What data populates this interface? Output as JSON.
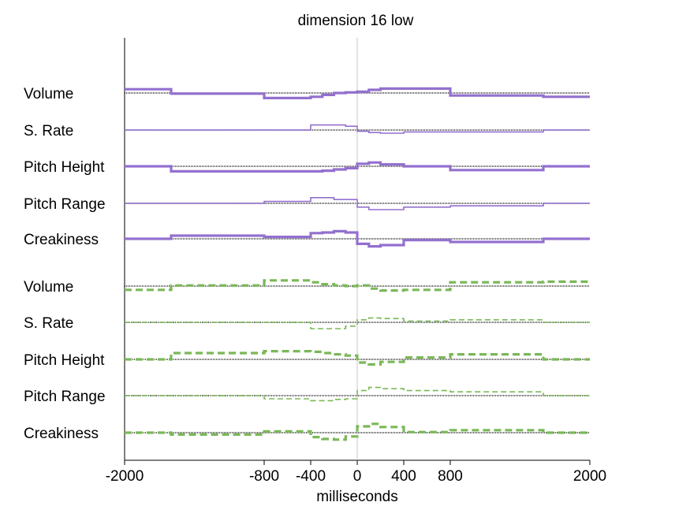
{
  "chart_data": {
    "type": "line",
    "title": "dimension 16 low",
    "xlabel": "milliseconds",
    "xlim": [
      -2000,
      2000
    ],
    "x_ticks": [
      -2000,
      -800,
      -400,
      0,
      400,
      800,
      2000
    ],
    "x_tick_labels": [
      "-2000",
      "-800",
      "-400",
      "0",
      "400",
      "800",
      "2000"
    ],
    "grid": false,
    "legend": "none",
    "row_labels": [
      "Volume",
      "S. Rate",
      "Pitch Height",
      "Pitch Range",
      "Creakiness",
      "Volume",
      "S. Rate",
      "Pitch Height",
      "Pitch Range",
      "Creakiness"
    ],
    "colors": {
      "purple": "#9370cf",
      "green": "#7ab857",
      "baseline": "#222222",
      "zero_line": "#c8c8c8"
    },
    "x_breakpoints": [
      -2000,
      -1600,
      -800,
      -400,
      -300,
      -200,
      -100,
      0,
      100,
      200,
      400,
      800,
      1600,
      2000
    ],
    "series": [
      {
        "group": "purple",
        "style": "solid",
        "weight": "thick",
        "values": [
          0.6,
          -0.1,
          -0.8,
          -0.6,
          -0.3,
          0,
          0.1,
          0.2,
          0.5,
          0.7,
          0.7,
          -0.4,
          -0.6,
          -0.6
        ]
      },
      {
        "group": "purple",
        "style": "solid",
        "weight": "thin",
        "values": [
          0,
          0,
          0,
          0.8,
          0.8,
          0.8,
          0.6,
          -0.2,
          -0.4,
          -0.5,
          -0.3,
          -0.3,
          0,
          0
        ]
      },
      {
        "group": "purple",
        "style": "solid",
        "weight": "thick",
        "values": [
          0,
          -0.8,
          -0.8,
          -0.8,
          -0.7,
          -0.5,
          -0.3,
          0.4,
          0.6,
          0.3,
          0,
          -0.6,
          0,
          0
        ]
      },
      {
        "group": "purple",
        "style": "solid",
        "weight": "thin",
        "values": [
          0,
          0,
          0.3,
          0.9,
          0.9,
          0.6,
          0.6,
          -0.6,
          -1.0,
          -1.0,
          -0.6,
          -0.4,
          0,
          0
        ]
      },
      {
        "group": "purple",
        "style": "solid",
        "weight": "thick",
        "values": [
          0,
          0.5,
          0.3,
          0.9,
          1.0,
          1.2,
          1.0,
          -0.8,
          -1.2,
          -1.0,
          -0.2,
          -0.5,
          0,
          0
        ]
      },
      {
        "group": "green",
        "style": "dashed",
        "weight": "thick",
        "values": [
          -0.6,
          0.1,
          0.9,
          0.6,
          0.3,
          0.1,
          0,
          0.1,
          -0.4,
          -0.7,
          -0.6,
          0.6,
          0.7,
          0.7
        ]
      },
      {
        "group": "green",
        "style": "dashed",
        "weight": "thin",
        "values": [
          0,
          0,
          0,
          -1.0,
          -1.0,
          -1.0,
          -0.6,
          0.4,
          0.7,
          0.6,
          0.2,
          0.4,
          0,
          0
        ]
      },
      {
        "group": "green",
        "style": "dashed",
        "weight": "thick",
        "values": [
          0,
          1.0,
          1.3,
          1.2,
          1.0,
          0.8,
          0.6,
          -0.5,
          -0.8,
          -0.4,
          0.3,
          0.8,
          0,
          0
        ]
      },
      {
        "group": "green",
        "style": "dashed",
        "weight": "thin",
        "values": [
          0,
          0,
          -0.5,
          -0.8,
          -0.8,
          -0.6,
          -0.5,
          0.8,
          1.3,
          1.1,
          0.8,
          0.6,
          0,
          0
        ]
      },
      {
        "group": "green",
        "style": "dashed",
        "weight": "thick",
        "values": [
          0,
          -0.3,
          0.2,
          -0.7,
          -1.0,
          -1.1,
          -0.6,
          1.0,
          1.4,
          0.9,
          0.1,
          0.4,
          0,
          0
        ]
      }
    ]
  }
}
